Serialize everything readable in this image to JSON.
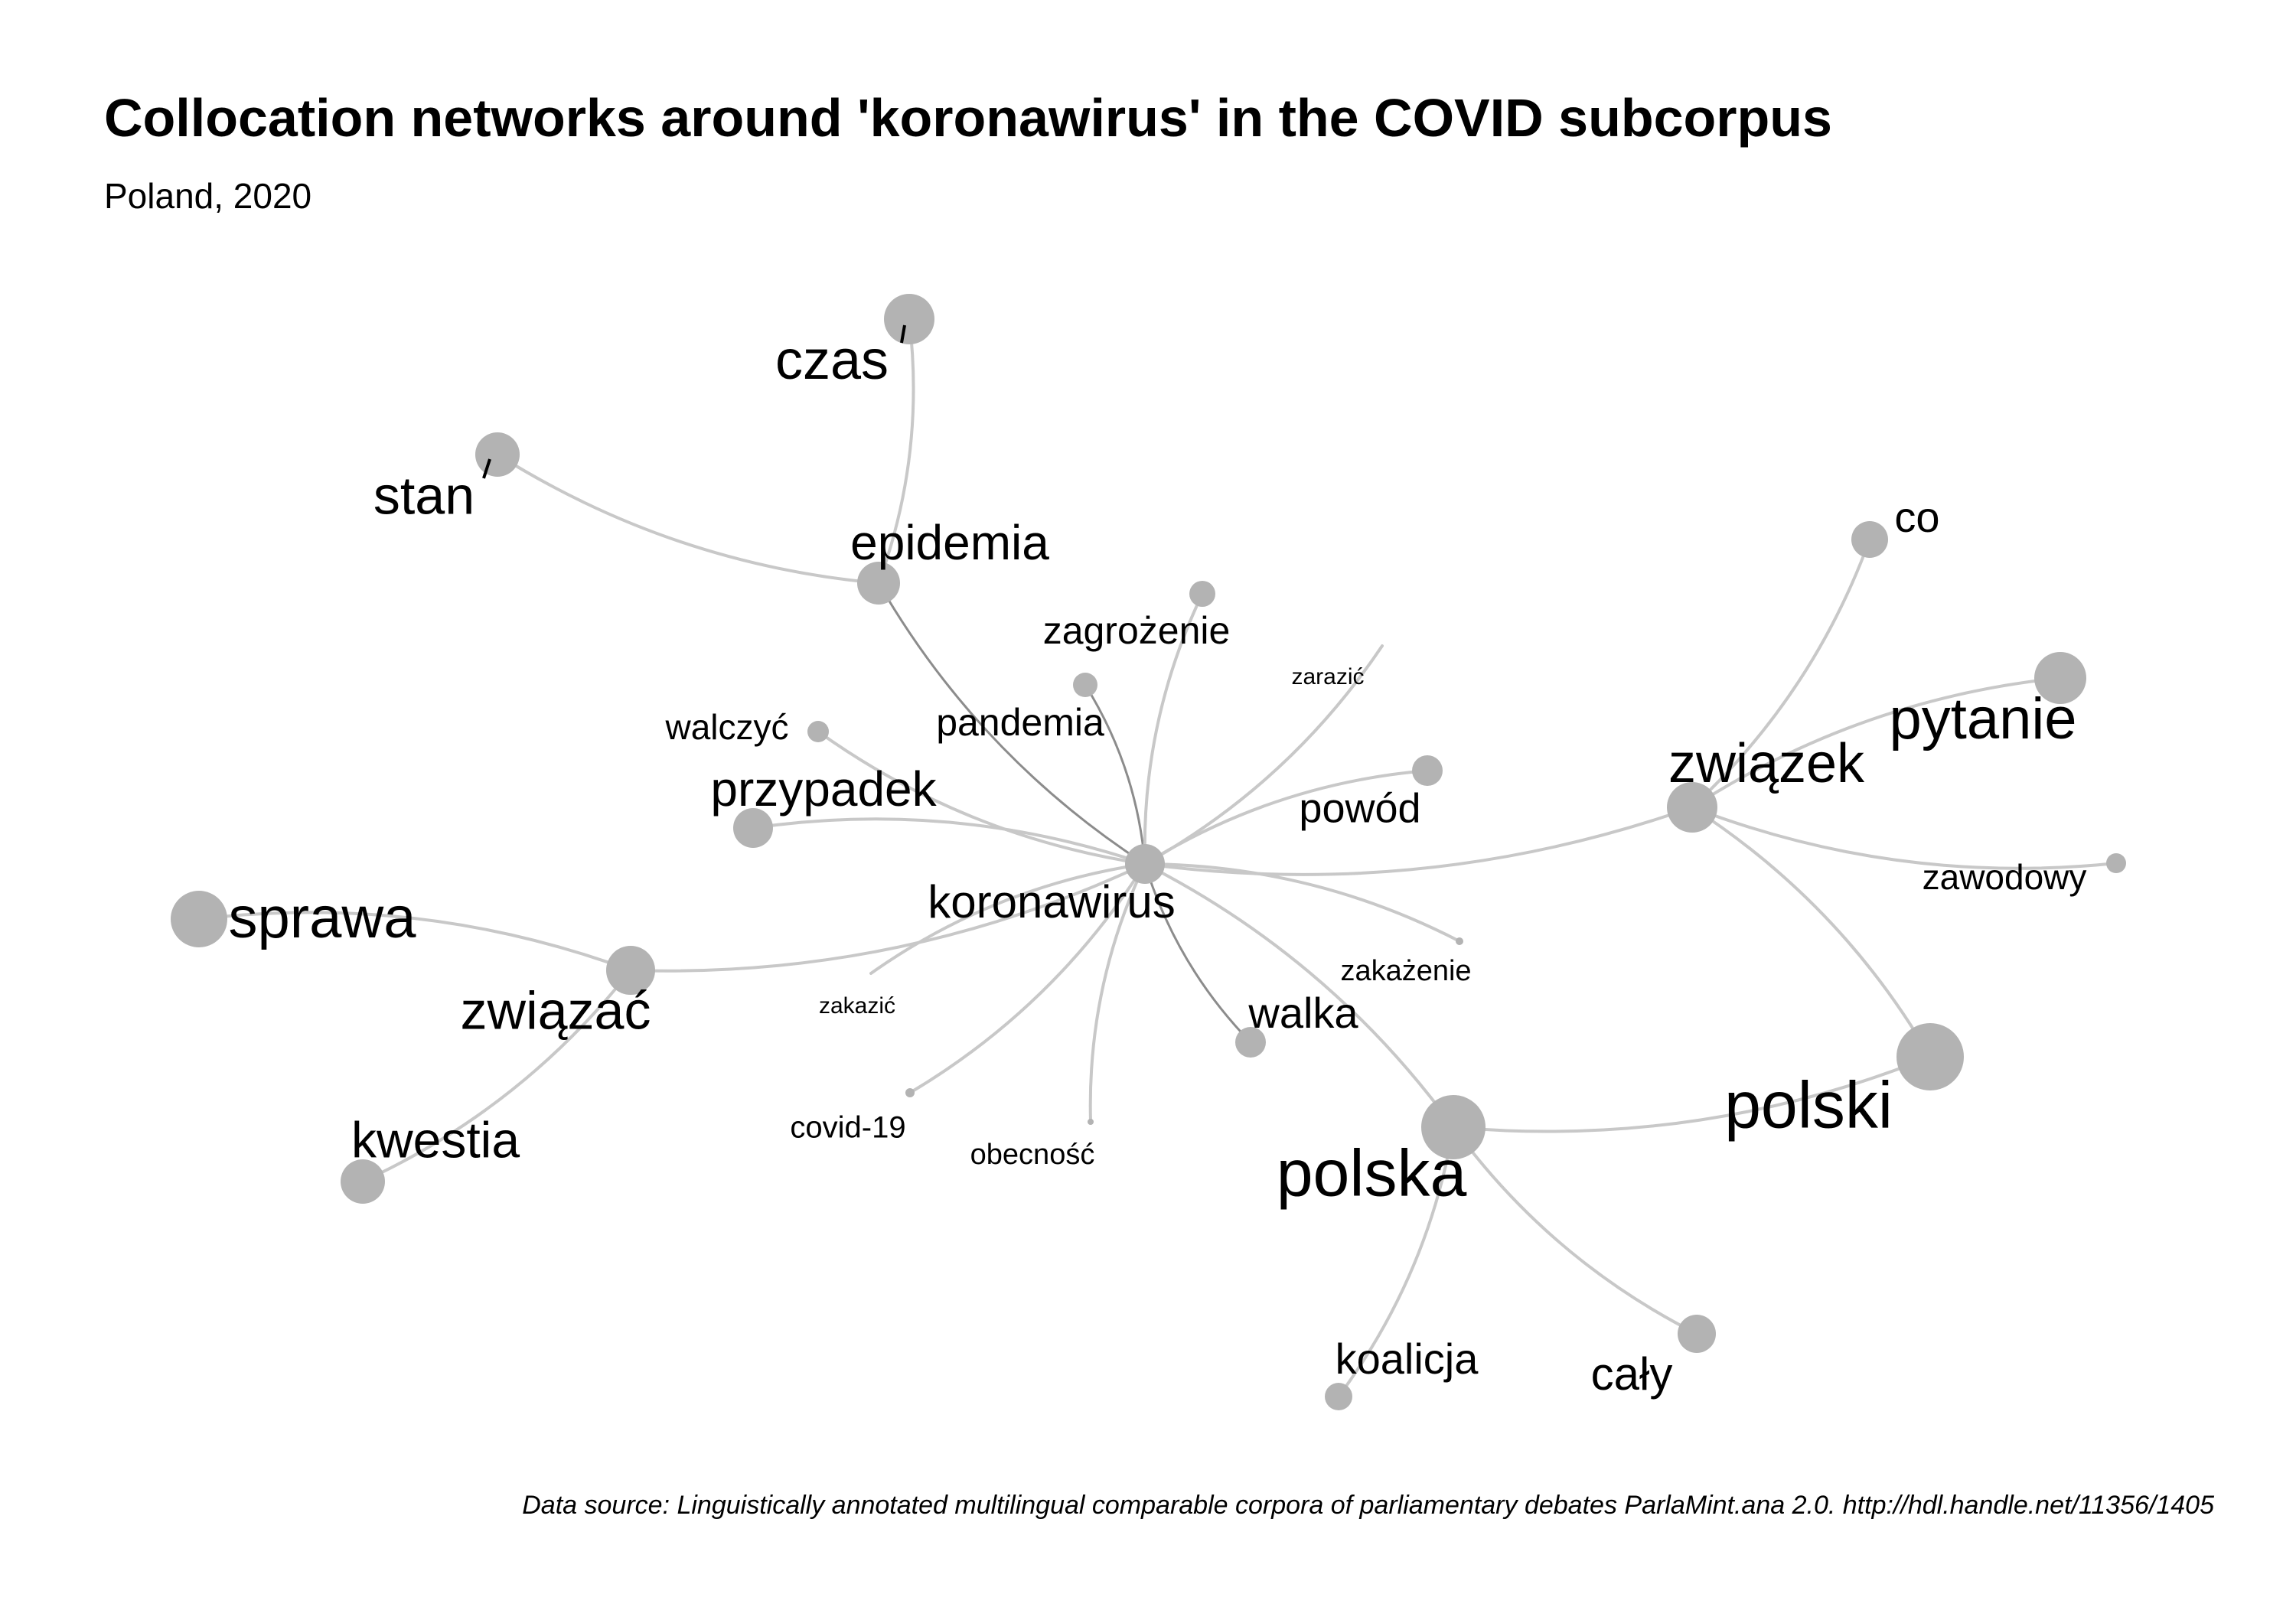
{
  "title": "Collocation networks around 'koronawirus' in the COVID subcorpus",
  "subtitle": "Poland, 2020",
  "caption": "Data source: Linguistically annotated multilingual comparable corpora of parliamentary debates ParlaMint.ana 2.0. http://hdl.handle.net/11356/1405",
  "colors": {
    "node": "#b3b3b3",
    "edge": "#c8c8c8",
    "edge_dark": "#8c8c8c",
    "text": "#000000"
  },
  "nodes": [
    {
      "id": "koronawirus",
      "label": "koronawirus"
    },
    {
      "id": "czas",
      "label": "czas"
    },
    {
      "id": "stan",
      "label": "stan"
    },
    {
      "id": "epidemia",
      "label": "epidemia"
    },
    {
      "id": "zagrozenie",
      "label": "zagrożenie"
    },
    {
      "id": "zarazic",
      "label": "zarazić"
    },
    {
      "id": "walczyc",
      "label": "walczyć"
    },
    {
      "id": "pandemia",
      "label": "pandemia"
    },
    {
      "id": "przypadek",
      "label": "przypadek"
    },
    {
      "id": "powod",
      "label": "powód"
    },
    {
      "id": "co",
      "label": "co"
    },
    {
      "id": "pytanie",
      "label": "pytanie"
    },
    {
      "id": "zwiazek",
      "label": "związek"
    },
    {
      "id": "zawodowy",
      "label": "zawodowy"
    },
    {
      "id": "sprawa",
      "label": "sprawa"
    },
    {
      "id": "zwiazac",
      "label": "związać"
    },
    {
      "id": "zakazic",
      "label": "zakazić"
    },
    {
      "id": "zakazenie",
      "label": "zakażenie"
    },
    {
      "id": "walka",
      "label": "walka"
    },
    {
      "id": "kwestia",
      "label": "kwestia"
    },
    {
      "id": "covid19",
      "label": "covid-19"
    },
    {
      "id": "obecnosc",
      "label": "obecność"
    },
    {
      "id": "polska",
      "label": "polska"
    },
    {
      "id": "polski",
      "label": "polski"
    },
    {
      "id": "koalicja",
      "label": "koalicja"
    },
    {
      "id": "caly",
      "label": "cały"
    }
  ],
  "edges": [
    [
      "koronawirus",
      "epidemia"
    ],
    [
      "koronawirus",
      "pandemia"
    ],
    [
      "koronawirus",
      "zagrozenie"
    ],
    [
      "koronawirus",
      "zarazic"
    ],
    [
      "koronawirus",
      "walczyc"
    ],
    [
      "koronawirus",
      "przypadek"
    ],
    [
      "koronawirus",
      "powod"
    ],
    [
      "koronawirus",
      "zwiazek"
    ],
    [
      "koronawirus",
      "zwiazac"
    ],
    [
      "koronawirus",
      "zakazic"
    ],
    [
      "koronawirus",
      "zakazenie"
    ],
    [
      "koronawirus",
      "walka"
    ],
    [
      "koronawirus",
      "covid19"
    ],
    [
      "koronawirus",
      "obecnosc"
    ],
    [
      "koronawirus",
      "polska"
    ],
    [
      "epidemia",
      "czas"
    ],
    [
      "epidemia",
      "stan"
    ],
    [
      "zwiazek",
      "co"
    ],
    [
      "zwiazek",
      "pytanie"
    ],
    [
      "zwiazek",
      "zawodowy"
    ],
    [
      "zwiazek",
      "polski"
    ],
    [
      "zwiazac",
      "sprawa"
    ],
    [
      "zwiazac",
      "kwestia"
    ],
    [
      "polska",
      "polski"
    ],
    [
      "polska",
      "koalicja"
    ],
    [
      "polska",
      "caly"
    ]
  ]
}
